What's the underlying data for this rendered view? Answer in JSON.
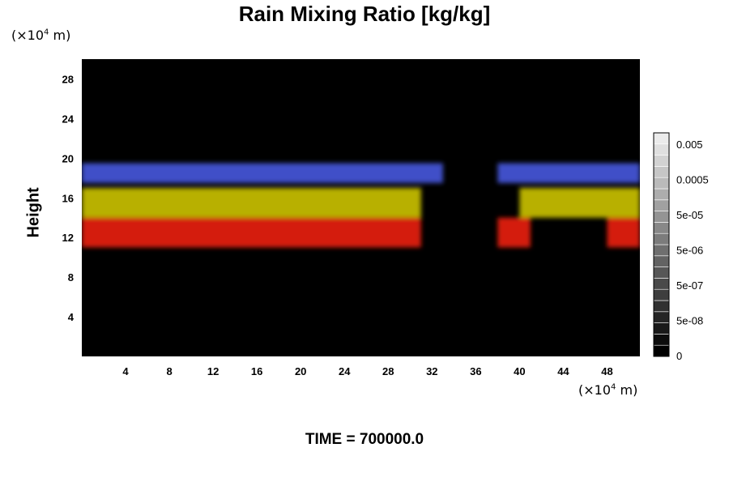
{
  "chart_data": {
    "type": "heatmap",
    "title": "Rain Mixing Ratio [kg/kg]",
    "ylabel": "Height",
    "xunit_prefix": "(×10",
    "xunit_exp": "4",
    "xunit_suffix": " m)",
    "yunit_prefix": "(×10",
    "yunit_exp": "4",
    "yunit_suffix": " m)",
    "xlim": [
      0,
      51
    ],
    "ylim": [
      0,
      30
    ],
    "xticks": [
      4,
      8,
      12,
      16,
      20,
      24,
      28,
      32,
      36,
      40,
      44,
      48
    ],
    "yticks": [
      4,
      8,
      12,
      16,
      20,
      24,
      28
    ],
    "layers": [
      {
        "name": "blue",
        "color": "#3f4fc8",
        "ybottom": 17.5,
        "ytop": 19.5,
        "segments": [
          [
            0,
            33
          ],
          [
            38,
            51
          ]
        ]
      },
      {
        "name": "yellow",
        "color": "#b8b000",
        "ybottom": 14,
        "ytop": 17,
        "segments": [
          [
            0,
            31
          ],
          [
            40,
            51
          ]
        ]
      },
      {
        "name": "red",
        "color": "#d41a10",
        "ybottom": 11,
        "ytop": 14,
        "segments": [
          [
            0,
            31
          ],
          [
            38,
            41
          ],
          [
            48,
            51
          ]
        ]
      }
    ],
    "colorbar": {
      "levels": 20,
      "labels": [
        "0.005",
        "0.0005",
        "5e-05",
        "5e-06",
        "5e-07",
        "5e-08",
        "0"
      ]
    },
    "time_label": "TIME = 700000.0"
  }
}
